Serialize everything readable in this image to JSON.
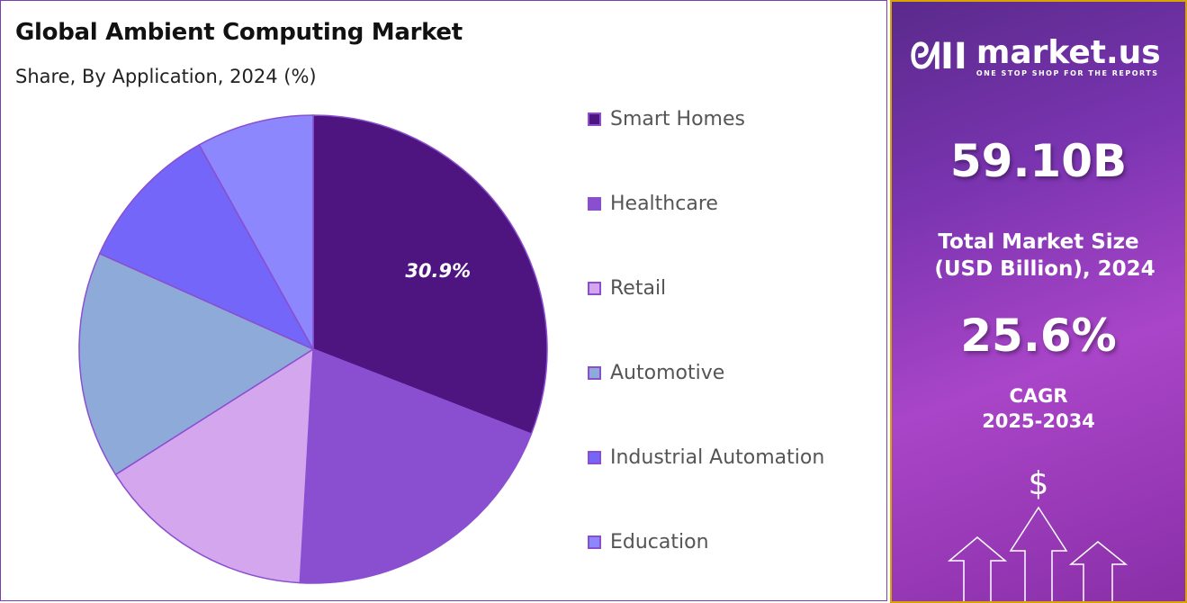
{
  "header": {
    "title": "Global Ambient Computing Market",
    "subtitle": "Share, By Application, 2024 (%)"
  },
  "chart_data": {
    "type": "pie",
    "title": "Global Ambient Computing Market",
    "subtitle": "Share, By Application, 2024 (%)",
    "categories": [
      "Smart Homes",
      "Healthcare",
      "Retail",
      "Automotive",
      "Industrial Automation",
      "Education"
    ],
    "values": [
      30.9,
      20.0,
      15.1,
      15.7,
      10.2,
      8.1
    ],
    "colors": [
      "#4e1580",
      "#8a4fd0",
      "#d4a6ee",
      "#8eaad8",
      "#7466f9",
      "#8c87fc"
    ],
    "data_labels": [
      "30.9%",
      "",
      "",
      "",
      "",
      ""
    ],
    "legend_position": "right",
    "start_angle": "top, clockwise"
  },
  "sidebar": {
    "brand": "market.us",
    "tagline": "ONE STOP SHOP FOR THE REPORTS",
    "market_size": "59.10B",
    "market_size_label_1": "Total Market Size",
    "market_size_label_2": "(USD Billion), 2024",
    "cagr": "25.6%",
    "cagr_label": "CAGR",
    "cagr_period": "2025-2034",
    "dollar_symbol": "$"
  }
}
